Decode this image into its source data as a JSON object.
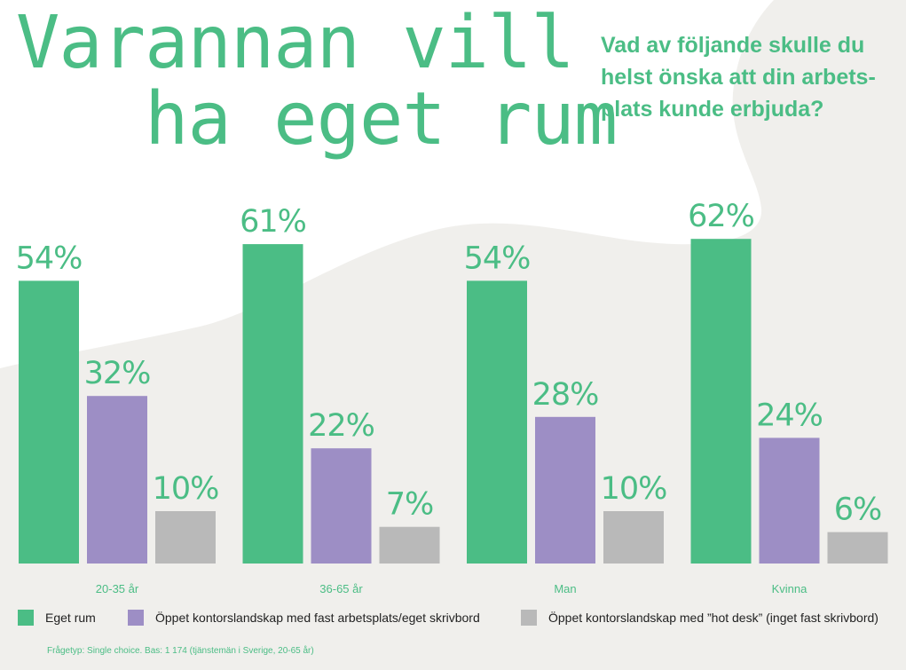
{
  "title_lines": [
    "Varannan vill",
    "   ha eget rum"
  ],
  "question_lines": [
    "Vad av följande skulle du",
    "helst önska att din arbets-",
    "plats kunde erbjuda?"
  ],
  "footnote": "Frågetyp: Single choice. Bas: 1 174 (tjänstemän i Sverige, 20-65 år)",
  "colors": {
    "background": "#f0efec",
    "shape": "#ffffff",
    "accent": "#4bbd85",
    "series": [
      "#4bbd85",
      "#9d8ec5",
      "#b9b9b9"
    ]
  },
  "chart_data": {
    "type": "bar",
    "title": "",
    "xlabel": "",
    "ylabel": "",
    "ylim": [
      0,
      100
    ],
    "grid": false,
    "legend_position": "bottom",
    "categories": [
      "20-35 år",
      "36-65 år",
      "Man",
      "Kvinna"
    ],
    "series": [
      {
        "name": "Eget rum",
        "values": [
          54,
          61,
          54,
          62
        ],
        "labels": [
          "54%",
          "61%",
          "54%",
          "62%"
        ]
      },
      {
        "name": "Öppet kontorslandskap med fast arbetsplats/eget skrivbord",
        "values": [
          32,
          22,
          28,
          24
        ],
        "labels": [
          "32%",
          "22%",
          "28%",
          "24%"
        ]
      },
      {
        "name": "Öppet kontorslandskap med ”hot desk” (inget fast skrivbord)",
        "values": [
          10,
          7,
          10,
          6
        ],
        "labels": [
          "10%",
          "7%",
          "10%",
          "6%"
        ]
      }
    ]
  }
}
